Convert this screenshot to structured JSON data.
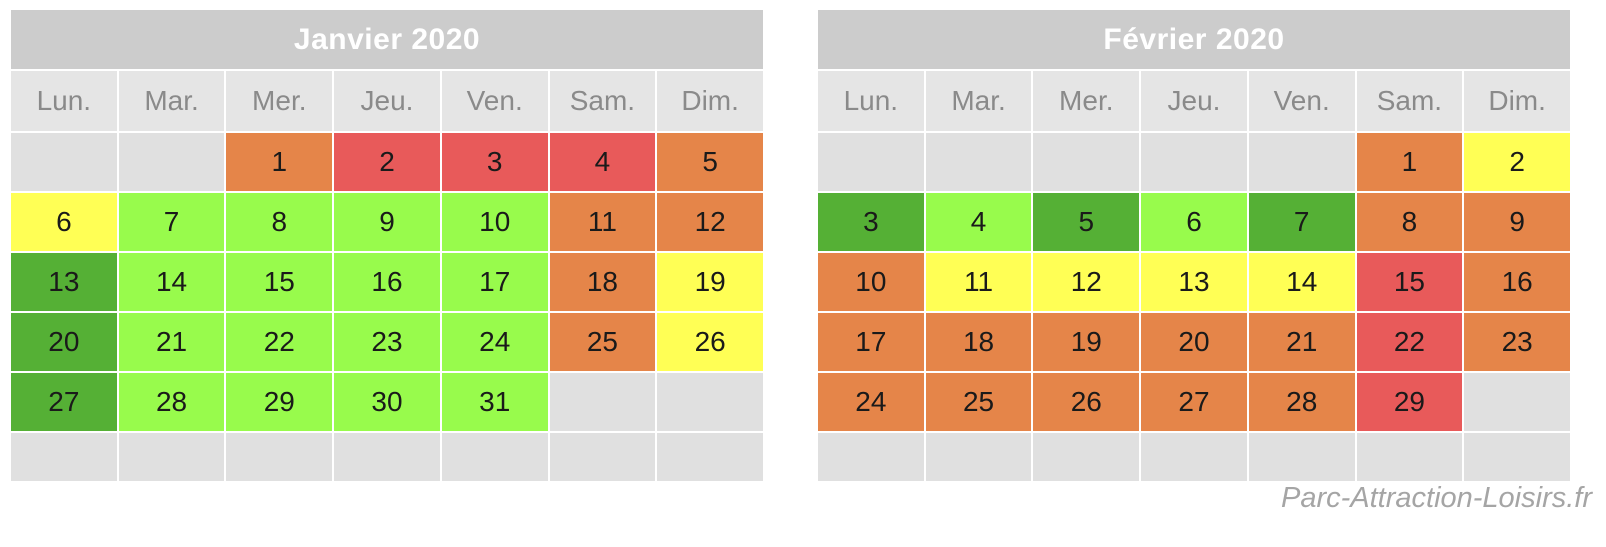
{
  "colors": {
    "red": "#e85a5a",
    "orange": "#e58549",
    "yellow": "#ffff55",
    "lightgreen": "#98fb4c",
    "darkgreen": "#55b035",
    "empty": "#e0e0e0",
    "header_bg": "#cccccc",
    "weekday_bg": "#e5e5e5"
  },
  "weekdays": [
    "Lun.",
    "Mar.",
    "Mer.",
    "Jeu.",
    "Ven.",
    "Sam.",
    "Dim."
  ],
  "calendars": [
    {
      "id": "jan",
      "title": "Janvier 2020",
      "cells": [
        {
          "d": "",
          "c": "empty"
        },
        {
          "d": "",
          "c": "empty"
        },
        {
          "d": "1",
          "c": "orange"
        },
        {
          "d": "2",
          "c": "red"
        },
        {
          "d": "3",
          "c": "red"
        },
        {
          "d": "4",
          "c": "red"
        },
        {
          "d": "5",
          "c": "orange"
        },
        {
          "d": "6",
          "c": "yellow"
        },
        {
          "d": "7",
          "c": "lightgreen"
        },
        {
          "d": "8",
          "c": "lightgreen"
        },
        {
          "d": "9",
          "c": "lightgreen"
        },
        {
          "d": "10",
          "c": "lightgreen"
        },
        {
          "d": "11",
          "c": "orange"
        },
        {
          "d": "12",
          "c": "orange"
        },
        {
          "d": "13",
          "c": "darkgreen"
        },
        {
          "d": "14",
          "c": "lightgreen"
        },
        {
          "d": "15",
          "c": "lightgreen"
        },
        {
          "d": "16",
          "c": "lightgreen"
        },
        {
          "d": "17",
          "c": "lightgreen"
        },
        {
          "d": "18",
          "c": "orange"
        },
        {
          "d": "19",
          "c": "yellow"
        },
        {
          "d": "20",
          "c": "darkgreen"
        },
        {
          "d": "21",
          "c": "lightgreen"
        },
        {
          "d": "22",
          "c": "lightgreen"
        },
        {
          "d": "23",
          "c": "lightgreen"
        },
        {
          "d": "24",
          "c": "lightgreen"
        },
        {
          "d": "25",
          "c": "orange"
        },
        {
          "d": "26",
          "c": "yellow"
        },
        {
          "d": "27",
          "c": "darkgreen"
        },
        {
          "d": "28",
          "c": "lightgreen"
        },
        {
          "d": "29",
          "c": "lightgreen"
        },
        {
          "d": "30",
          "c": "lightgreen"
        },
        {
          "d": "31",
          "c": "lightgreen"
        },
        {
          "d": "",
          "c": "empty"
        },
        {
          "d": "",
          "c": "empty"
        },
        {
          "d": "",
          "c": "empty"
        },
        {
          "d": "",
          "c": "empty"
        },
        {
          "d": "",
          "c": "empty"
        },
        {
          "d": "",
          "c": "empty"
        },
        {
          "d": "",
          "c": "empty"
        },
        {
          "d": "",
          "c": "empty"
        },
        {
          "d": "",
          "c": "empty"
        }
      ]
    },
    {
      "id": "feb",
      "title": "Février 2020",
      "cells": [
        {
          "d": "",
          "c": "empty"
        },
        {
          "d": "",
          "c": "empty"
        },
        {
          "d": "",
          "c": "empty"
        },
        {
          "d": "",
          "c": "empty"
        },
        {
          "d": "",
          "c": "empty"
        },
        {
          "d": "1",
          "c": "orange"
        },
        {
          "d": "2",
          "c": "yellow"
        },
        {
          "d": "3",
          "c": "darkgreen"
        },
        {
          "d": "4",
          "c": "lightgreen"
        },
        {
          "d": "5",
          "c": "darkgreen"
        },
        {
          "d": "6",
          "c": "lightgreen"
        },
        {
          "d": "7",
          "c": "darkgreen"
        },
        {
          "d": "8",
          "c": "orange"
        },
        {
          "d": "9",
          "c": "orange"
        },
        {
          "d": "10",
          "c": "orange"
        },
        {
          "d": "11",
          "c": "yellow"
        },
        {
          "d": "12",
          "c": "yellow"
        },
        {
          "d": "13",
          "c": "yellow"
        },
        {
          "d": "14",
          "c": "yellow"
        },
        {
          "d": "15",
          "c": "red"
        },
        {
          "d": "16",
          "c": "orange"
        },
        {
          "d": "17",
          "c": "orange"
        },
        {
          "d": "18",
          "c": "orange"
        },
        {
          "d": "19",
          "c": "orange"
        },
        {
          "d": "20",
          "c": "orange"
        },
        {
          "d": "21",
          "c": "orange"
        },
        {
          "d": "22",
          "c": "red"
        },
        {
          "d": "23",
          "c": "orange"
        },
        {
          "d": "24",
          "c": "orange"
        },
        {
          "d": "25",
          "c": "orange"
        },
        {
          "d": "26",
          "c": "orange"
        },
        {
          "d": "27",
          "c": "orange"
        },
        {
          "d": "28",
          "c": "orange"
        },
        {
          "d": "29",
          "c": "red"
        },
        {
          "d": "",
          "c": "empty"
        },
        {
          "d": "",
          "c": "empty"
        },
        {
          "d": "",
          "c": "empty"
        },
        {
          "d": "",
          "c": "empty"
        },
        {
          "d": "",
          "c": "empty"
        },
        {
          "d": "",
          "c": "empty"
        },
        {
          "d": "",
          "c": "empty"
        },
        {
          "d": "",
          "c": "empty"
        }
      ]
    }
  ],
  "watermark": "Parc-Attraction-Loisirs.fr"
}
